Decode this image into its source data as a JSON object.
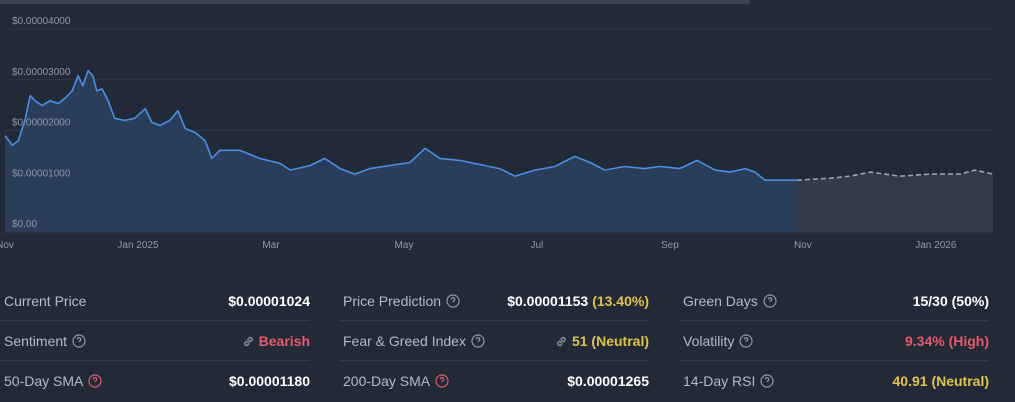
{
  "chart_data": {
    "type": "line",
    "x": [
      0,
      0.11,
      0.2,
      0.3,
      0.38,
      0.45,
      0.56,
      0.68,
      0.8,
      0.9,
      1.01,
      1.1,
      1.17,
      1.25,
      1.32,
      1.38,
      1.46,
      1.55,
      1.65,
      1.8,
      1.95,
      2.11,
      2.21,
      2.33,
      2.48,
      2.6,
      2.71,
      2.86,
      3.01,
      3.11,
      3.23,
      3.53,
      3.83,
      4.14,
      4.29,
      4.59,
      4.81,
      5.04,
      5.26,
      5.49,
      5.79,
      6.09,
      6.32,
      6.54,
      6.84,
      7.14,
      7.44,
      7.67,
      7.97,
      8.27,
      8.57,
      8.8,
      9.02,
      9.32,
      9.62,
      9.85,
      10.15,
      10.41,
      10.68,
      10.9,
      11.13,
      11.28,
      11.43,
      11.65,
      11.91,
      12.41,
      12.71,
      13.01,
      13.46,
      13.91,
      14.36,
      14.59,
      14.86
    ],
    "series": [
      {
        "name": "Price",
        "color": "#4a8fe7",
        "fill": "#2a3d5a",
        "dashed": false,
        "values": [
          1.9e-05,
          1.71e-05,
          1.8e-05,
          2.2e-05,
          2.69e-05,
          2.59e-05,
          2.49e-05,
          2.59e-05,
          2.53e-05,
          2.63e-05,
          2.78e-05,
          3.08e-05,
          2.88e-05,
          3.18e-05,
          3.08e-05,
          2.78e-05,
          2.82e-05,
          2.59e-05,
          2.24e-05,
          2.2e-05,
          2.24e-05,
          2.43e-05,
          2.16e-05,
          2.1e-05,
          2.2e-05,
          2.39e-05,
          2.04e-05,
          1.96e-05,
          1.8e-05,
          1.45e-05,
          1.61e-05,
          1.61e-05,
          1.45e-05,
          1.35e-05,
          1.22e-05,
          1.31e-05,
          1.45e-05,
          1.25e-05,
          1.14e-05,
          1.25e-05,
          1.31e-05,
          1.37e-05,
          1.65e-05,
          1.45e-05,
          1.41e-05,
          1.33e-05,
          1.25e-05,
          1.1e-05,
          1.22e-05,
          1.29e-05,
          1.49e-05,
          1.37e-05,
          1.22e-05,
          1.29e-05,
          1.25e-05,
          1.29e-05,
          1.25e-05,
          1.41e-05,
          1.22e-05,
          1.18e-05,
          1.25e-05,
          1.18e-05,
          1.02e-05,
          1.02e-05,
          1.02e-05,
          null,
          null,
          null,
          null,
          null,
          null,
          null,
          null
        ]
      },
      {
        "name": "Prediction",
        "color": "#9aa3b0",
        "fill": "#333b48",
        "dashed": true,
        "values": [
          null,
          null,
          null,
          null,
          null,
          null,
          null,
          null,
          null,
          null,
          null,
          null,
          null,
          null,
          null,
          null,
          null,
          null,
          null,
          null,
          null,
          null,
          null,
          null,
          null,
          null,
          null,
          null,
          null,
          null,
          null,
          null,
          null,
          null,
          null,
          null,
          null,
          null,
          null,
          null,
          null,
          null,
          null,
          null,
          null,
          null,
          null,
          null,
          null,
          null,
          null,
          null,
          null,
          null,
          null,
          null,
          null,
          null,
          null,
          null,
          null,
          null,
          null,
          null,
          1.02e-05,
          1.06e-05,
          1.1e-05,
          1.18e-05,
          1.1e-05,
          1.14e-05,
          1.14e-05,
          1.22e-05,
          1.14e-05
        ]
      }
    ],
    "xlim": [
      0,
      14.86
    ],
    "xticks": [
      {
        "value": 0,
        "label": "Nov"
      },
      {
        "value": 2,
        "label": "Jan 2025"
      },
      {
        "value": 4,
        "label": "Mar"
      },
      {
        "value": 6,
        "label": "May"
      },
      {
        "value": 8,
        "label": "Jul"
      },
      {
        "value": 10,
        "label": "Sep"
      },
      {
        "value": 12,
        "label": "Nov"
      },
      {
        "value": 14,
        "label": "Jan 2026"
      }
    ],
    "ylim": [
      0,
      4e-05
    ],
    "yticks": [
      {
        "value": 0,
        "label": "$0.00"
      },
      {
        "value": 1e-05,
        "label": "$0.00001000"
      },
      {
        "value": 2e-05,
        "label": "$0.00002000"
      },
      {
        "value": 3e-05,
        "label": "$0.00003000"
      },
      {
        "value": 4e-05,
        "label": "$0.00004000"
      }
    ],
    "grid": true
  },
  "stats": [
    {
      "label": "Current Price",
      "value": "$0.00001024"
    },
    {
      "label": "Price Prediction",
      "value": "$0.00001153",
      "note": "(13.40%)"
    },
    {
      "label": "Green Days",
      "value": "15/30 (50%)"
    },
    {
      "label": "Sentiment",
      "value": "Bearish"
    },
    {
      "label": "Fear & Greed Index",
      "value": "51 (Neutral)"
    },
    {
      "label": "Volatility",
      "value": "9.34% (High)"
    },
    {
      "label": "50-Day SMA",
      "value": "$0.00001180"
    },
    {
      "label": "200-Day SMA",
      "value": "$0.00001265"
    },
    {
      "label": "14-Day RSI",
      "value": "40.91 (Neutral)"
    }
  ]
}
